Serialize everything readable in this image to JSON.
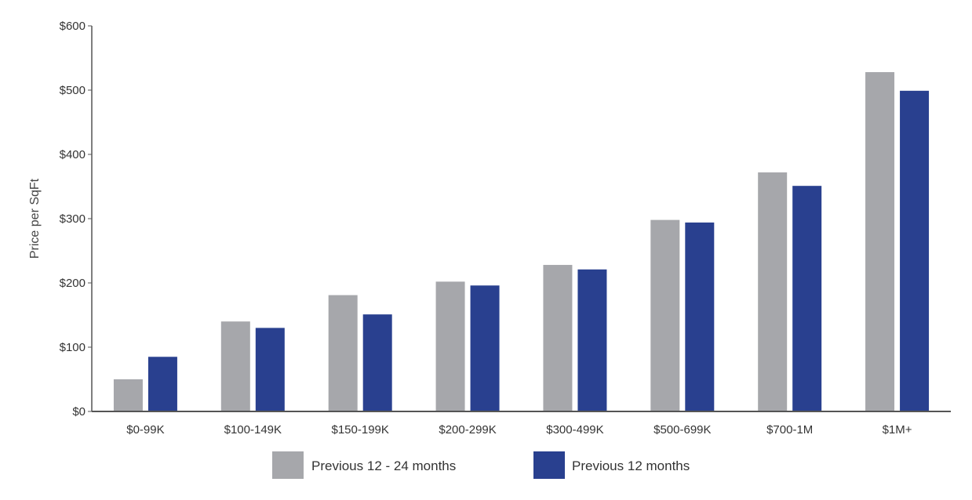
{
  "chart_data": {
    "type": "bar",
    "title": "",
    "xlabel": "",
    "ylabel": "Price per SqFt",
    "ylim": [
      0,
      600
    ],
    "y_ticks": [
      "$0",
      "$100",
      "$200",
      "$300",
      "$400",
      "$500",
      "$600"
    ],
    "categories": [
      "$0-99K",
      "$100-149K",
      "$150-199K",
      "$200-299K",
      "$300-499K",
      "$500-699K",
      "$700-1M",
      "$1M+"
    ],
    "series": [
      {
        "name": "Previous 12 - 24 months",
        "color": "#a6a7ab",
        "values": [
          50,
          140,
          181,
          202,
          228,
          298,
          372,
          528
        ]
      },
      {
        "name": "Previous 12 months",
        "color": "#29408f",
        "values": [
          85,
          130,
          151,
          196,
          221,
          294,
          351,
          499
        ]
      }
    ],
    "grid": false,
    "legend_position": "bottom-center"
  }
}
